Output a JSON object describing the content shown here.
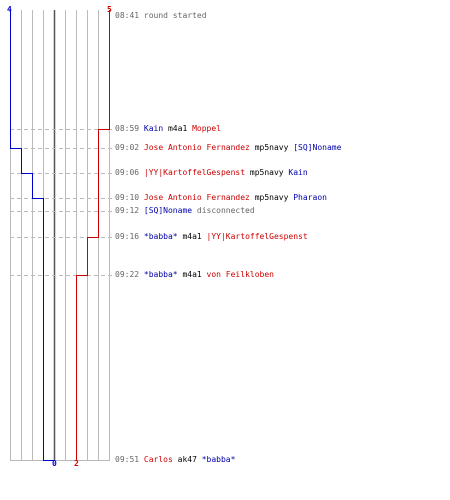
{
  "colors": {
    "red": "#cc0000",
    "blue": "#0000cc",
    "grid": "#bbbbbb",
    "center": "#555555",
    "dash": "#bbbbbb",
    "text": "#666666"
  },
  "scores": {
    "blue_start": "4",
    "red_start": "5",
    "blue_end": "0",
    "red_end": "2"
  },
  "events": [
    {
      "time": "08:41",
      "parts": [
        {
          "text": "round started",
          "kind": "plain"
        }
      ]
    },
    {
      "time": "08:59",
      "parts": [
        {
          "text": "Kain",
          "kind": "blue"
        },
        {
          "text": " m4a1 ",
          "kind": "weapon"
        },
        {
          "text": "Moppel",
          "kind": "red"
        }
      ]
    },
    {
      "time": "09:02",
      "parts": [
        {
          "text": "Jose Antonio Fernandez",
          "kind": "red"
        },
        {
          "text": " mp5navy ",
          "kind": "weapon"
        },
        {
          "text": "[SQ]Noname",
          "kind": "blue"
        }
      ]
    },
    {
      "time": "09:06",
      "parts": [
        {
          "text": "|YY|KartoffelGespenst",
          "kind": "red"
        },
        {
          "text": " mp5navy ",
          "kind": "weapon"
        },
        {
          "text": "Kain",
          "kind": "blue"
        }
      ]
    },
    {
      "time": "09:10",
      "parts": [
        {
          "text": "Jose Antonio Fernandez",
          "kind": "red"
        },
        {
          "text": " mp5navy ",
          "kind": "weapon"
        },
        {
          "text": "Pharaon",
          "kind": "blue"
        }
      ]
    },
    {
      "time": "09:12",
      "parts": [
        {
          "text": "[SQ]Noname",
          "kind": "blue"
        },
        {
          "text": " disconnected",
          "kind": "plain"
        }
      ]
    },
    {
      "time": "09:16",
      "parts": [
        {
          "text": "*babba*",
          "kind": "blue"
        },
        {
          "text": " m4a1 ",
          "kind": "weapon"
        },
        {
          "text": "|YY|KartoffelGespenst",
          "kind": "red"
        }
      ]
    },
    {
      "time": "09:22",
      "parts": [
        {
          "text": "*babba*",
          "kind": "blue"
        },
        {
          "text": " m4a1 ",
          "kind": "weapon"
        },
        {
          "text": "von Feilkloben",
          "kind": "red"
        }
      ]
    },
    {
      "time": "09:51",
      "parts": [
        {
          "text": "Carlos",
          "kind": "red"
        },
        {
          "text": " ak47 ",
          "kind": "weapon"
        },
        {
          "text": "*babba*",
          "kind": "blue"
        }
      ]
    }
  ]
}
